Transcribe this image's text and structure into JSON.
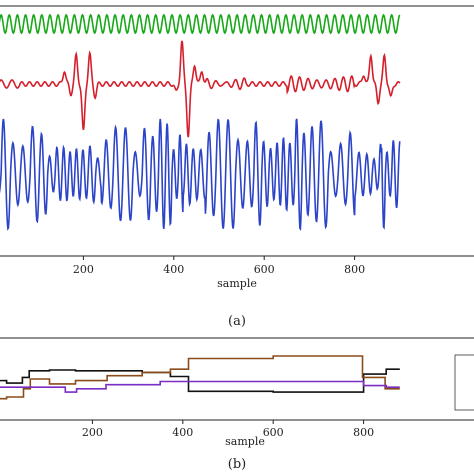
{
  "chart_data": [
    {
      "type": "line",
      "panel_caption": "(a)",
      "xlabel": "sample",
      "xticks": [
        "200",
        "400",
        "600",
        "800"
      ],
      "xlim": [
        0,
        900
      ],
      "grid": false,
      "series": [
        {
          "color": "#18a818",
          "amplitude": 9,
          "period": 18,
          "track_top_pct": 0.0,
          "desc_values": "regular periodic oscillation, ~50 cycles over 900 samples"
        },
        {
          "color": "#d4202c",
          "spikes": [
            {
              "x": 158,
              "a": 14
            },
            {
              "x": 172,
              "a": -10
            },
            {
              "x": 184,
              "a": 28
            },
            {
              "x": 200,
              "a": -48
            },
            {
              "x": 214,
              "a": 30
            },
            {
              "x": 226,
              "a": -12
            },
            {
              "x": 405,
              "a": -8
            },
            {
              "x": 418,
              "a": 42
            },
            {
              "x": 432,
              "a": -52
            },
            {
              "x": 446,
              "a": 20
            },
            {
              "x": 462,
              "a": 14
            },
            {
              "x": 820,
              "a": 10
            },
            {
              "x": 836,
              "a": 30
            },
            {
              "x": 852,
              "a": -18
            },
            {
              "x": 866,
              "a": 28
            },
            {
              "x": 880,
              "a": -14
            }
          ]
        },
        {
          "color": "#2c44c8",
          "amplitude_range": [
            20,
            58
          ],
          "period_range": [
            14,
            22
          ]
        }
      ]
    },
    {
      "type": "line",
      "panel_caption": "(b)",
      "xlabel": "sample",
      "xticks": [
        "200",
        "400",
        "600",
        "800"
      ],
      "xlim": [
        0,
        900
      ],
      "grid": false,
      "series": [
        {
          "color": "#111111",
          "steps": [
            [
              0,
              52
            ],
            [
              60,
              55
            ],
            [
              70,
              48
            ],
            [
              90,
              40
            ],
            [
              160,
              39
            ],
            [
              205,
              40
            ],
            [
              300,
              40
            ],
            [
              360,
              42
            ],
            [
              425,
              47
            ],
            [
              440,
              65
            ],
            [
              800,
              66
            ],
            [
              840,
              44
            ],
            [
              900,
              38
            ]
          ]
        },
        {
          "color": "#8a4c1a",
          "steps": [
            [
              0,
              74
            ],
            [
              60,
              72
            ],
            [
              75,
              62
            ],
            [
              90,
              50
            ],
            [
              160,
              56
            ],
            [
              205,
              52
            ],
            [
              300,
              46
            ],
            [
              360,
              42
            ],
            [
              425,
              38
            ],
            [
              440,
              25
            ],
            [
              800,
              22
            ],
            [
              835,
              48
            ],
            [
              900,
              62
            ]
          ]
        },
        {
          "color": "#7a2dc4",
          "steps": [
            [
              0,
              60
            ],
            [
              150,
              60
            ],
            [
              170,
              66
            ],
            [
              200,
              62
            ],
            [
              300,
              57
            ],
            [
              440,
              53
            ],
            [
              800,
              53
            ],
            [
              840,
              58
            ],
            [
              900,
              60
            ]
          ]
        }
      ]
    }
  ]
}
